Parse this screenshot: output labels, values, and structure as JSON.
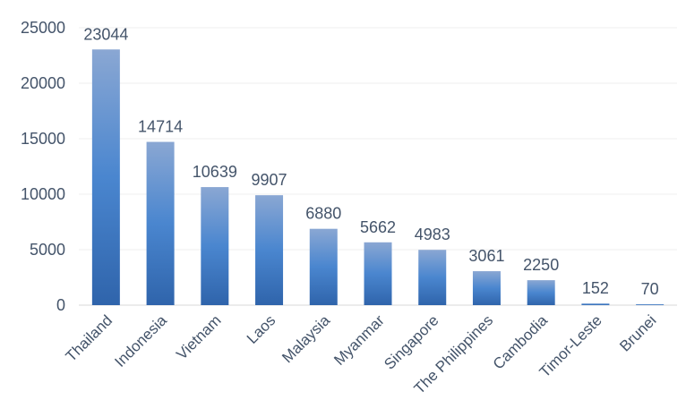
{
  "colors": {
    "bar_top": "#8aa7d3",
    "bar_mid": "#4a86cf",
    "bar_bottom": "#2f64ab",
    "text": "#44546a",
    "grid": "#efefef"
  },
  "chart_data": {
    "type": "bar",
    "title": "",
    "xlabel": "",
    "ylabel": "",
    "categories": [
      "Thailand",
      "Indonesia",
      "Vietnam",
      "Laos",
      "Malaysia",
      "Myanmar",
      "Singapore",
      "The Philippines",
      "Cambodia",
      "Timor-Leste",
      "Brunei"
    ],
    "values": [
      23044,
      14714,
      10639,
      9907,
      6880,
      5662,
      4983,
      3061,
      2250,
      152,
      70
    ],
    "data_labels": [
      "23044",
      "14714",
      "10639",
      "9907",
      "6880",
      "5662",
      "4983",
      "3061",
      "2250",
      "152",
      "70"
    ],
    "ylim": [
      0,
      25000
    ],
    "yticks": [
      0,
      5000,
      10000,
      15000,
      20000,
      25000
    ],
    "ytick_labels": [
      "0",
      "5000",
      "10000",
      "15000",
      "20000",
      "25000"
    ],
    "grid": true,
    "legend": "none"
  }
}
